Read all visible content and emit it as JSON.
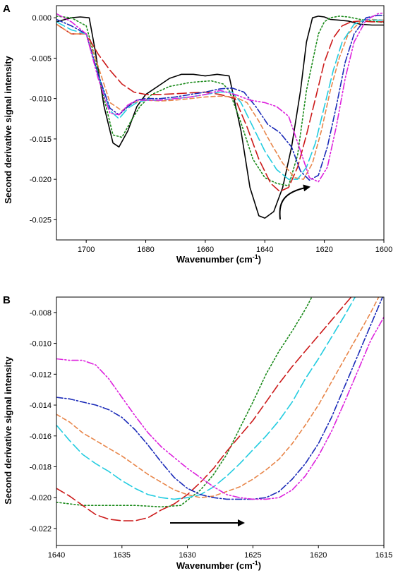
{
  "chart_data": [
    {
      "type": "line",
      "panel_label": "A",
      "xlabel": "Wavenumber (cm",
      "xlabel_sup": "-1",
      "xlabel_end": ")",
      "ylabel": "Second derivative signal intensity",
      "xlim": [
        1710,
        1600
      ],
      "ylim": [
        -0.0275,
        0.0015
      ],
      "x_reversed": true,
      "x_ticks": [
        "1700",
        "1680",
        "1660",
        "1640",
        "1620",
        "1600"
      ],
      "x_tick_values": [
        1700,
        1680,
        1660,
        1640,
        1620,
        1600
      ],
      "y_ticks": [
        "0.000",
        "-0.005",
        "-0.010",
        "-0.015",
        "-0.020",
        "-0.025"
      ],
      "y_tick_values": [
        0,
        -0.005,
        -0.01,
        -0.015,
        -0.02,
        -0.025
      ],
      "grid": false,
      "annotation": "curved arrow pointing toward lower wavenumbers",
      "series": [
        {
          "color": "#000000",
          "dash": "solid",
          "x": [
            1710,
            1705,
            1702,
            1699,
            1697,
            1694,
            1691,
            1689,
            1686,
            1683,
            1680,
            1676,
            1672,
            1668,
            1664,
            1660,
            1656,
            1652,
            1648,
            1645,
            1642,
            1640,
            1637,
            1634,
            1631,
            1628,
            1626,
            1624,
            1622,
            1620,
            1618,
            1615,
            1612,
            1608,
            1604,
            1600
          ],
          "y": [
            -0.0005,
            0.0,
            0.0001,
            0.0,
            -0.004,
            -0.011,
            -0.0155,
            -0.016,
            -0.014,
            -0.011,
            -0.0095,
            -0.0085,
            -0.0075,
            -0.007,
            -0.007,
            -0.0072,
            -0.007,
            -0.0072,
            -0.014,
            -0.021,
            -0.0245,
            -0.0248,
            -0.024,
            -0.021,
            -0.016,
            -0.009,
            -0.003,
            0.0,
            0.0002,
            0.0001,
            -0.0002,
            -0.0003,
            -0.0004,
            -0.0008,
            -0.0009,
            -0.0009
          ]
        },
        {
          "color": "#1a8a1a",
          "dash": "dotted",
          "x": [
            1710,
            1705,
            1700,
            1697,
            1694,
            1691,
            1688,
            1685,
            1682,
            1678,
            1672,
            1665,
            1658,
            1654,
            1652,
            1648,
            1644,
            1640,
            1636,
            1632,
            1629,
            1626,
            1622,
            1620,
            1618,
            1615,
            1612,
            1608,
            1604,
            1600
          ],
          "y": [
            0.0002,
            0.0,
            -0.001,
            -0.005,
            -0.01,
            -0.0145,
            -0.0148,
            -0.0128,
            -0.011,
            -0.0095,
            -0.0085,
            -0.008,
            -0.0078,
            -0.0082,
            -0.009,
            -0.013,
            -0.0175,
            -0.0198,
            -0.0205,
            -0.0208,
            -0.017,
            -0.009,
            -0.002,
            -0.0005,
            0.0,
            0.0002,
            0.0001,
            -0.0002,
            -0.0004,
            -0.0006
          ]
        },
        {
          "color": "#cc1a1a",
          "dash": "long-dash",
          "x": [
            1710,
            1705,
            1700,
            1696,
            1692,
            1688,
            1684,
            1680,
            1675,
            1670,
            1665,
            1660,
            1655,
            1650,
            1646,
            1642,
            1638,
            1635,
            1632,
            1629,
            1626,
            1623,
            1620,
            1617,
            1614,
            1611,
            1608,
            1604,
            1600
          ],
          "y": [
            -0.0008,
            -0.002,
            -0.002,
            -0.0045,
            -0.0065,
            -0.0082,
            -0.0092,
            -0.0095,
            -0.0095,
            -0.0094,
            -0.0093,
            -0.0092,
            -0.0095,
            -0.01,
            -0.0135,
            -0.0175,
            -0.0205,
            -0.0215,
            -0.021,
            -0.0185,
            -0.0145,
            -0.01,
            -0.0055,
            -0.0025,
            -0.001,
            -0.0005,
            -0.0004,
            -0.0005,
            -0.0005
          ]
        },
        {
          "color": "#e8864a",
          "dash": "dash",
          "x": [
            1710,
            1705,
            1700,
            1696,
            1692,
            1688,
            1684,
            1680,
            1675,
            1670,
            1665,
            1660,
            1655,
            1650,
            1646,
            1642,
            1638,
            1634,
            1630,
            1627,
            1624,
            1621,
            1618,
            1615,
            1612,
            1608,
            1604,
            1600
          ],
          "y": [
            -0.0008,
            -0.002,
            -0.002,
            -0.006,
            -0.0105,
            -0.0115,
            -0.0105,
            -0.0102,
            -0.0103,
            -0.0102,
            -0.01,
            -0.0098,
            -0.0097,
            -0.0098,
            -0.0105,
            -0.0128,
            -0.0155,
            -0.018,
            -0.0198,
            -0.02,
            -0.018,
            -0.014,
            -0.009,
            -0.005,
            -0.002,
            -0.0005,
            -0.0002,
            -0.0003
          ]
        },
        {
          "color": "#22cce0",
          "dash": "long-dash",
          "x": [
            1710,
            1705,
            1700,
            1696,
            1692,
            1689,
            1686,
            1683,
            1680,
            1675,
            1670,
            1665,
            1660,
            1655,
            1651,
            1648,
            1644,
            1640,
            1636,
            1632,
            1629,
            1626,
            1623,
            1620,
            1617,
            1614,
            1610,
            1606,
            1602,
            1600
          ],
          "y": [
            -0.0005,
            -0.0015,
            -0.002,
            -0.007,
            -0.0115,
            -0.0125,
            -0.0112,
            -0.0105,
            -0.0102,
            -0.0102,
            -0.01,
            -0.0098,
            -0.0095,
            -0.0092,
            -0.0092,
            -0.0105,
            -0.0135,
            -0.0165,
            -0.0188,
            -0.02,
            -0.02,
            -0.0185,
            -0.0155,
            -0.011,
            -0.0065,
            -0.003,
            -0.0008,
            -0.0002,
            -0.0003,
            -0.0003
          ]
        },
        {
          "color": "#1a2ab8",
          "dash": "dash-dot",
          "x": [
            1710,
            1705,
            1700,
            1696,
            1692,
            1689,
            1686,
            1683,
            1680,
            1675,
            1670,
            1665,
            1660,
            1655,
            1651,
            1647,
            1643,
            1639,
            1635,
            1631,
            1628,
            1625,
            1622,
            1619,
            1616,
            1613,
            1610,
            1606,
            1602,
            1600
          ],
          "y": [
            -0.0002,
            -0.001,
            -0.002,
            -0.007,
            -0.0112,
            -0.012,
            -0.011,
            -0.0102,
            -0.01,
            -0.01,
            -0.0098,
            -0.0095,
            -0.0092,
            -0.0088,
            -0.0087,
            -0.0092,
            -0.011,
            -0.0132,
            -0.0142,
            -0.016,
            -0.019,
            -0.0201,
            -0.0195,
            -0.016,
            -0.011,
            -0.0055,
            -0.002,
            0.0,
            0.0003,
            0.0003
          ]
        },
        {
          "color": "#dd22dd",
          "dash": "dash-dot-dot",
          "x": [
            1710,
            1705,
            1700,
            1696,
            1692,
            1689,
            1686,
            1683,
            1680,
            1675,
            1670,
            1665,
            1660,
            1655,
            1650,
            1645,
            1640,
            1636,
            1632,
            1628,
            1625,
            1622,
            1619,
            1616,
            1613,
            1610,
            1606,
            1602,
            1600
          ],
          "y": [
            0.0005,
            -0.0005,
            -0.002,
            -0.0075,
            -0.0118,
            -0.012,
            -0.0108,
            -0.0102,
            -0.0102,
            -0.0102,
            -0.01,
            -0.0098,
            -0.0095,
            -0.009,
            -0.0095,
            -0.0102,
            -0.0105,
            -0.011,
            -0.0122,
            -0.0165,
            -0.0198,
            -0.0203,
            -0.0185,
            -0.0135,
            -0.0075,
            -0.003,
            -0.0003,
            0.0005,
            0.0006
          ]
        }
      ]
    },
    {
      "type": "line",
      "panel_label": "B",
      "xlabel": "Wavenumber (cm",
      "xlabel_sup": "-1",
      "xlabel_end": ")",
      "ylabel": "Second derivative signal intensity",
      "xlim": [
        1640,
        1615
      ],
      "ylim": [
        -0.0231,
        -0.007
      ],
      "x_reversed": true,
      "x_ticks": [
        "1640",
        "1635",
        "1630",
        "1625",
        "1620",
        "1615"
      ],
      "x_tick_values": [
        1640,
        1635,
        1630,
        1625,
        1620,
        1615
      ],
      "y_ticks": [
        "-0.008",
        "-0.010",
        "-0.012",
        "-0.014",
        "-0.016",
        "-0.018",
        "-0.020",
        "-0.022"
      ],
      "y_tick_values": [
        -0.008,
        -0.01,
        -0.012,
        -0.014,
        -0.016,
        -0.018,
        -0.02,
        -0.022
      ],
      "grid": false,
      "annotation": "straight arrow pointing toward lower wavenumbers",
      "series": [
        {
          "color": "#1a8a1a",
          "dash": "dotted",
          "x": [
            1640,
            1638,
            1636,
            1634,
            1632,
            1630.5,
            1629,
            1628,
            1627,
            1626,
            1625,
            1624,
            1623,
            1622,
            1621,
            1620.5
          ],
          "y": [
            -0.0203,
            -0.0205,
            -0.0205,
            -0.0205,
            -0.0206,
            -0.0205,
            -0.0195,
            -0.0185,
            -0.0172,
            -0.0155,
            -0.0138,
            -0.012,
            -0.0105,
            -0.0092,
            -0.0078,
            -0.007
          ]
        },
        {
          "color": "#cc1a1a",
          "dash": "long-dash",
          "x": [
            1640,
            1639,
            1638,
            1637,
            1636,
            1635,
            1634,
            1633,
            1632,
            1631,
            1630,
            1629,
            1628,
            1627,
            1626,
            1625,
            1624,
            1623,
            1622,
            1621,
            1620,
            1619,
            1618,
            1617.5
          ],
          "y": [
            -0.0194,
            -0.0199,
            -0.0205,
            -0.0211,
            -0.0214,
            -0.0215,
            -0.0215,
            -0.0213,
            -0.0208,
            -0.0204,
            -0.0198,
            -0.019,
            -0.0181,
            -0.017,
            -0.016,
            -0.015,
            -0.0138,
            -0.0126,
            -0.0115,
            -0.0105,
            -0.0095,
            -0.0085,
            -0.0075,
            -0.007
          ]
        },
        {
          "color": "#e8864a",
          "dash": "dash",
          "x": [
            1640,
            1639,
            1638,
            1637,
            1636,
            1635,
            1634,
            1633,
            1632,
            1631,
            1630,
            1629,
            1628,
            1627,
            1626,
            1625,
            1624,
            1623,
            1622,
            1621,
            1620,
            1619,
            1618,
            1617,
            1616,
            1615.4
          ],
          "y": [
            -0.0146,
            -0.0151,
            -0.0158,
            -0.0163,
            -0.0168,
            -0.0173,
            -0.0179,
            -0.0185,
            -0.019,
            -0.0195,
            -0.0198,
            -0.02,
            -0.0199,
            -0.0196,
            -0.0193,
            -0.0188,
            -0.0182,
            -0.0175,
            -0.0165,
            -0.0153,
            -0.014,
            -0.0125,
            -0.011,
            -0.0095,
            -0.008,
            -0.007
          ]
        },
        {
          "color": "#22cce0",
          "dash": "long-dash",
          "x": [
            1640,
            1639,
            1638,
            1637,
            1636,
            1635,
            1634,
            1633,
            1632,
            1631,
            1630,
            1629,
            1628,
            1627,
            1626,
            1625,
            1624,
            1623,
            1622,
            1621,
            1620,
            1619,
            1618,
            1617.2
          ],
          "y": [
            -0.0153,
            -0.0163,
            -0.0172,
            -0.0178,
            -0.0183,
            -0.0189,
            -0.0194,
            -0.0198,
            -0.02,
            -0.0201,
            -0.02,
            -0.0198,
            -0.0193,
            -0.0186,
            -0.0178,
            -0.0169,
            -0.016,
            -0.015,
            -0.0138,
            -0.0123,
            -0.011,
            -0.0096,
            -0.0082,
            -0.007
          ]
        },
        {
          "color": "#1a2ab8",
          "dash": "dash-dot",
          "x": [
            1640,
            1639,
            1638,
            1637,
            1636,
            1635,
            1634,
            1633,
            1632,
            1631,
            1630,
            1629,
            1628,
            1627,
            1626,
            1625,
            1624,
            1623,
            1622,
            1621,
            1620,
            1619,
            1618,
            1617,
            1616,
            1615.1
          ],
          "y": [
            -0.0135,
            -0.0136,
            -0.0138,
            -0.014,
            -0.0143,
            -0.0148,
            -0.0156,
            -0.0166,
            -0.0177,
            -0.0187,
            -0.0194,
            -0.0198,
            -0.02,
            -0.0201,
            -0.0201,
            -0.0201,
            -0.02,
            -0.0196,
            -0.0188,
            -0.0178,
            -0.0165,
            -0.0148,
            -0.0128,
            -0.0108,
            -0.0088,
            -0.007
          ]
        },
        {
          "color": "#dd22dd",
          "dash": "dash-dot-dot",
          "x": [
            1640,
            1639,
            1638,
            1637,
            1636,
            1635,
            1634,
            1633,
            1632,
            1631,
            1630,
            1629,
            1628,
            1627,
            1626,
            1625,
            1624,
            1623,
            1622,
            1621,
            1620,
            1619,
            1618,
            1617,
            1616,
            1615
          ],
          "y": [
            -0.011,
            -0.0111,
            -0.0111,
            -0.0114,
            -0.0123,
            -0.0135,
            -0.0147,
            -0.0158,
            -0.0167,
            -0.0174,
            -0.0181,
            -0.0187,
            -0.0193,
            -0.0198,
            -0.02,
            -0.0201,
            -0.0201,
            -0.02,
            -0.0195,
            -0.0186,
            -0.0173,
            -0.0157,
            -0.0138,
            -0.0118,
            -0.0098,
            -0.0083
          ]
        }
      ]
    }
  ]
}
